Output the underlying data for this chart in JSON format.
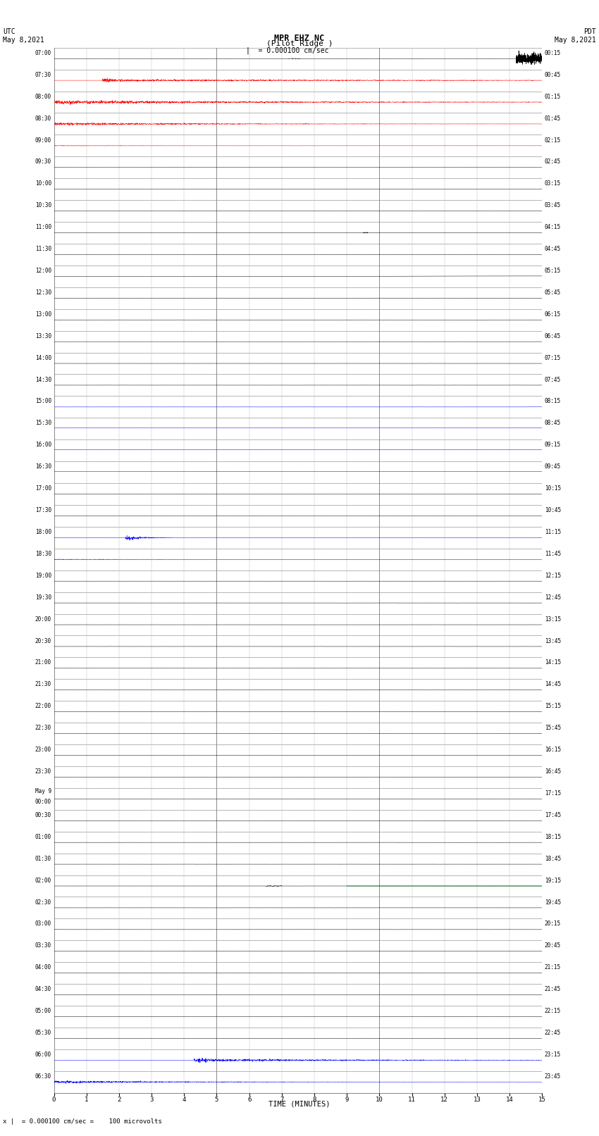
{
  "title_line1": "MPR EHZ NC",
  "title_line2": "(Pilot Ridge )",
  "scale_label": "= 0.000100 cm/sec",
  "left_header": "UTC\nMay 8,2021",
  "right_header": "PDT\nMay 8,2021",
  "xlabel": "TIME (MINUTES)",
  "footnote": "x |  = 0.000100 cm/sec =    100 microvolts",
  "figsize": [
    8.5,
    16.13
  ],
  "dpi": 100,
  "bg_color": "#ffffff",
  "grid_color_minor": "#cccccc",
  "grid_color_major": "#888888",
  "num_rows": 48,
  "left_labels": [
    "07:00",
    "07:30",
    "08:00",
    "08:30",
    "09:00",
    "09:30",
    "10:00",
    "10:30",
    "11:00",
    "11:30",
    "12:00",
    "12:30",
    "13:00",
    "13:30",
    "14:00",
    "14:30",
    "15:00",
    "15:30",
    "16:00",
    "16:30",
    "17:00",
    "17:30",
    "18:00",
    "18:30",
    "19:00",
    "19:30",
    "20:00",
    "20:30",
    "21:00",
    "21:30",
    "22:00",
    "22:30",
    "23:00",
    "23:30",
    "May 9\n00:00",
    "00:30",
    "01:00",
    "01:30",
    "02:00",
    "02:30",
    "03:00",
    "03:30",
    "04:00",
    "04:30",
    "05:00",
    "05:30",
    "06:00",
    "06:30"
  ],
  "right_labels": [
    "00:15",
    "00:45",
    "01:15",
    "01:45",
    "02:15",
    "02:45",
    "03:15",
    "03:45",
    "04:15",
    "04:45",
    "05:15",
    "05:45",
    "06:15",
    "06:45",
    "07:15",
    "07:45",
    "08:15",
    "08:45",
    "09:15",
    "09:45",
    "10:15",
    "10:45",
    "11:15",
    "11:45",
    "12:15",
    "12:45",
    "13:15",
    "13:45",
    "14:15",
    "14:45",
    "15:15",
    "15:45",
    "16:15",
    "16:45",
    "17:15",
    "17:45",
    "18:15",
    "18:45",
    "19:15",
    "19:45",
    "20:15",
    "20:45",
    "21:15",
    "21:45",
    "22:15",
    "22:45",
    "23:15",
    "23:45"
  ]
}
